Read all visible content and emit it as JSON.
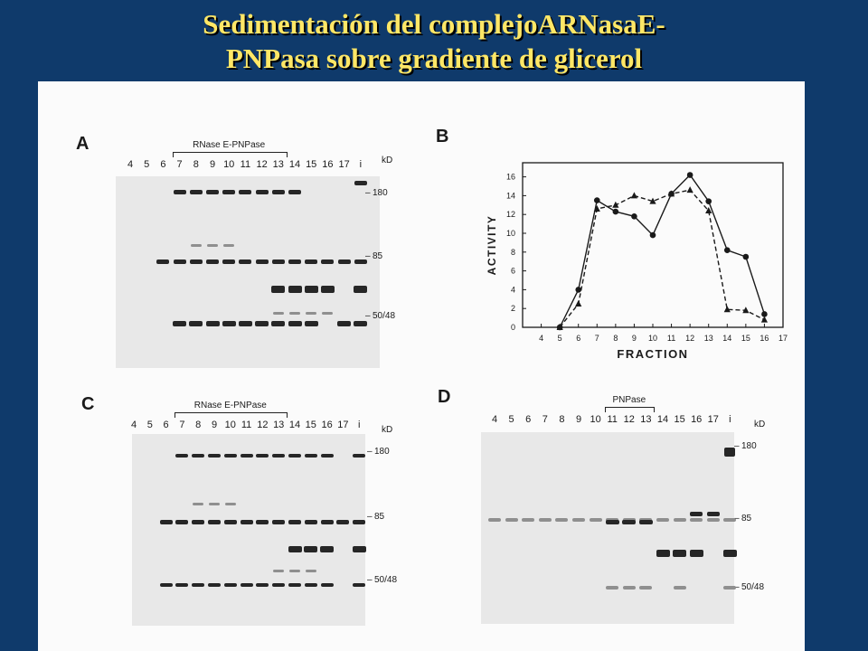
{
  "title": {
    "line1": "Sedimentación del complejoARNasaE-",
    "line2": "PNPasa sobre gradiente de glicerol"
  },
  "colors": {
    "background": "#0f3a6b",
    "title": "#ffe766"
  },
  "panels": {
    "A": {
      "letter": "A",
      "bracket_label": "RNase E-PNPase",
      "lanes": [
        "4",
        "5",
        "6",
        "7",
        "8",
        "9",
        "10",
        "11",
        "12",
        "13",
        "14",
        "15",
        "16",
        "17",
        "i"
      ],
      "kd_label": "kD",
      "markers": [
        "180",
        "85",
        "50/48"
      ]
    },
    "B": {
      "letter": "B"
    },
    "C": {
      "letter": "C",
      "bracket_label": "RNase E-PNPase",
      "lanes": [
        "4",
        "5",
        "6",
        "7",
        "8",
        "9",
        "10",
        "11",
        "12",
        "13",
        "14",
        "15",
        "16",
        "17",
        "i"
      ],
      "kd_label": "kD",
      "markers": [
        "180",
        "85",
        "50/48"
      ]
    },
    "D": {
      "letter": "D",
      "bracket_label": "PNPase",
      "lanes": [
        "4",
        "5",
        "6",
        "7",
        "8",
        "9",
        "10",
        "11",
        "12",
        "13",
        "14",
        "15",
        "16",
        "17",
        "i"
      ],
      "kd_label": "kD",
      "markers": [
        "180",
        "85",
        "50/48"
      ]
    }
  },
  "chart_data": {
    "type": "line",
    "xlabel": "FRACTION",
    "ylabel": "ACTIVITY",
    "xlim": [
      3,
      17
    ],
    "ylim": [
      0,
      17.5
    ],
    "xticks": [
      "4",
      "5",
      "6",
      "7",
      "8",
      "9",
      "10",
      "11",
      "12",
      "13",
      "14",
      "15",
      "16",
      "17"
    ],
    "yticks": [
      "0",
      "2",
      "4",
      "6",
      "8",
      "10",
      "12",
      "14",
      "16"
    ],
    "grid": false,
    "series": [
      {
        "marker": "circle",
        "line": "solid",
        "x": [
          5,
          6,
          7,
          8,
          9,
          10,
          11,
          12,
          13,
          14,
          15,
          16
        ],
        "y": [
          0,
          4,
          13.5,
          12.3,
          11.8,
          9.8,
          14.2,
          16.2,
          13.4,
          8.2,
          7.5,
          1.4
        ]
      },
      {
        "marker": "triangle",
        "line": "dashed",
        "x": [
          5,
          6,
          7,
          8,
          9,
          10,
          11,
          12,
          13,
          14,
          15,
          16
        ],
        "y": [
          0,
          2.5,
          12.6,
          13,
          14,
          13.4,
          14.2,
          14.6,
          12.4,
          1.9,
          1.8,
          0.8
        ]
      }
    ]
  }
}
